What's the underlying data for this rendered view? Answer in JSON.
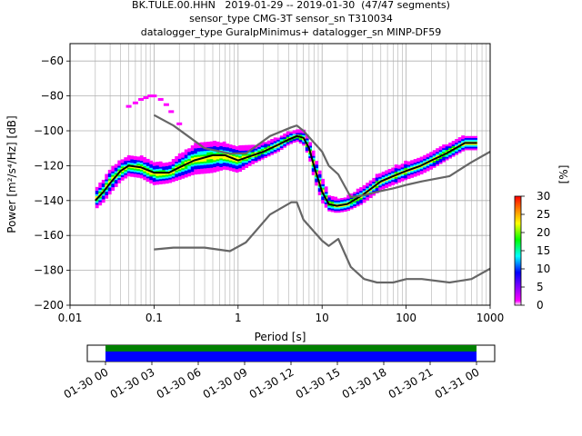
{
  "header": {
    "title_line1": "BK.TULE.00.HHN   2019-01-29 -- 2019-01-30  (47/47 segments)",
    "title_line2": "sensor_type CMG-3T sensor_sn T310034",
    "title_line3": "datalogger_type GuralpMinimus+ datalogger_sn MINP-DF59"
  },
  "chart_data": [
    {
      "type": "heatmap",
      "xlabel": "Period [s]",
      "ylabel": "Power [m²/s⁴/Hz] [dB]",
      "xscale": "log",
      "xlim": [
        0.01,
        1000
      ],
      "ylim": [
        -200,
        -50
      ],
      "x_ticks": [
        "0.01",
        "0.1",
        "1",
        "10",
        "100",
        "1000"
      ],
      "y_ticks": [
        "-200",
        "-180",
        "-160",
        "-140",
        "-120",
        "-100",
        "-80",
        "-60"
      ],
      "grid": true,
      "colorbar": {
        "label": "[%]",
        "min": 0,
        "max": 30,
        "ticks": [
          "0",
          "5",
          "10",
          "15",
          "20",
          "25",
          "30"
        ],
        "colormap": [
          "#ffffff",
          "#ff00ff",
          "#0000ff",
          "#00ffff",
          "#00ff00",
          "#ffff00",
          "#ff8000",
          "#ff0000"
        ]
      },
      "series": [
        {
          "color": "#000000",
          "x": [
            0.02,
            0.025,
            0.03,
            0.04,
            0.05,
            0.07,
            0.1,
            0.15,
            0.2,
            0.3,
            0.5,
            0.7,
            1,
            1.5,
            2,
            3,
            4,
            5,
            6,
            7,
            8,
            10,
            12,
            15,
            20,
            30,
            50,
            70,
            100,
            150,
            200,
            300,
            500,
            700
          ],
          "y": [
            -140,
            -135,
            -130,
            -123,
            -120,
            -121,
            -124,
            -124,
            -121,
            -117,
            -114,
            -114,
            -117,
            -114,
            -112,
            -108,
            -105,
            -103,
            -104,
            -110,
            -120,
            -135,
            -142,
            -143,
            -142,
            -137,
            -129,
            -126,
            -123,
            -120,
            -117,
            -113,
            -107,
            -107
          ]
        },
        {
          "color": "#666666",
          "x": [
            0.1,
            0.17,
            0.4,
            0.8,
            1.24,
            2.4,
            4.3,
            5,
            6,
            10,
            12,
            15.6,
            21.9,
            31.6,
            45,
            70,
            101,
            154,
            328,
            600,
            1000
          ],
          "y": [
            -91,
            -97,
            -110,
            -113,
            -113,
            -103,
            -98,
            -97,
            -100,
            -112,
            -120,
            -125,
            -138,
            -137,
            -135,
            -133,
            -131,
            -129,
            -126,
            -118,
            -112
          ]
        },
        {
          "color": "#666666",
          "x": [
            0.1,
            0.17,
            0.4,
            0.8,
            1.24,
            2.4,
            4.3,
            5,
            6,
            10,
            12,
            15.6,
            21.9,
            31.6,
            45,
            70,
            101,
            154,
            328,
            600,
            1000
          ],
          "y": [
            -168,
            -167,
            -167,
            -169,
            -164,
            -148,
            -141,
            -141,
            -151,
            -163,
            -166,
            -162,
            -178,
            -185,
            -187,
            -187,
            -185,
            -185,
            -187,
            -185,
            -179
          ]
        }
      ],
      "pdf_region": {
        "x": [
          0.02,
          0.025,
          0.03,
          0.04,
          0.05,
          0.07,
          0.1,
          0.15,
          0.2,
          0.3,
          0.5,
          0.7,
          1,
          1.5,
          2,
          3,
          4,
          5,
          6,
          7,
          8,
          10,
          12,
          15,
          20,
          30,
          50,
          70,
          100,
          150,
          200,
          300,
          500,
          700
        ],
        "upper": [
          -134,
          -128,
          -122,
          -117,
          -115,
          -115,
          -118,
          -119,
          -114,
          -108,
          -106,
          -107,
          -109,
          -109,
          -107,
          -104,
          -101,
          -100,
          -100,
          -105,
          -113,
          -127,
          -137,
          -139,
          -138,
          -132,
          -124,
          -121,
          -118,
          -115,
          -112,
          -108,
          -103,
          -103
        ],
        "lower": [
          -145,
          -141,
          -136,
          -129,
          -126,
          -127,
          -131,
          -130,
          -128,
          -125,
          -124,
          -122,
          -124,
          -119,
          -116,
          -112,
          -108,
          -106,
          -108,
          -115,
          -127,
          -141,
          -146,
          -147,
          -146,
          -142,
          -134,
          -131,
          -128,
          -125,
          -122,
          -117,
          -111,
          -111
        ]
      },
      "pdf_outliers_upper": {
        "x": [
          0.05,
          0.06,
          0.07,
          0.08,
          0.09,
          0.1,
          0.12,
          0.14,
          0.16,
          0.2
        ],
        "y": [
          -86,
          -84,
          -82,
          -81,
          -80,
          -80,
          -82,
          -85,
          -89,
          -96
        ]
      }
    },
    {
      "type": "bar",
      "x_ticks": [
        "01-30 00",
        "01-30 03",
        "01-30 06",
        "01-30 09",
        "01-30 12",
        "01-30 15",
        "01-30 18",
        "01-30 21",
        "01-31 00"
      ],
      "rows": [
        {
          "color": "#008000",
          "start": "01-30 00",
          "end": "01-31 00"
        },
        {
          "color": "#0000ff",
          "start": "01-30 00",
          "end": "01-31 00"
        }
      ]
    }
  ]
}
